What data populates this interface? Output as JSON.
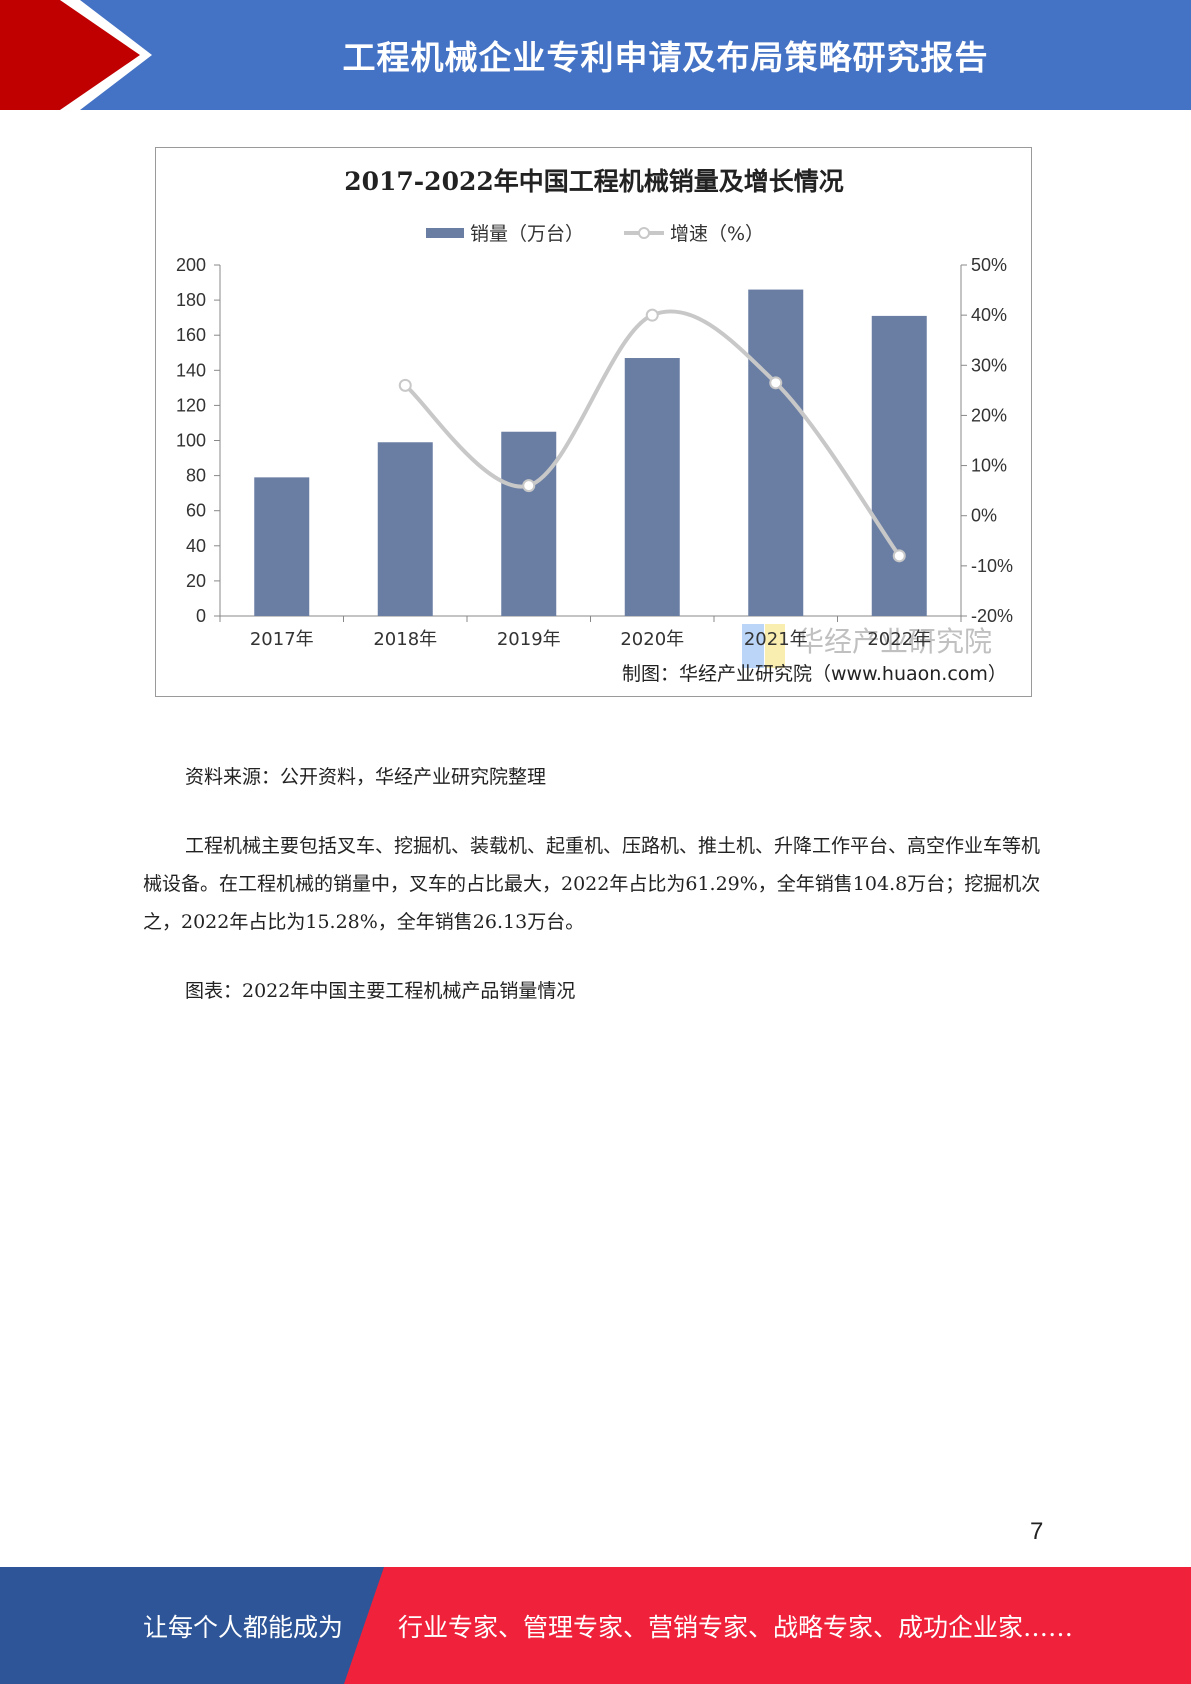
{
  "header": {
    "title": "工程机械企业专利申请及布局策略研究报告",
    "colors": {
      "banner": "#4472c4",
      "chevron": "#c00000"
    }
  },
  "chart_data": {
    "type": "bar",
    "title": "2017-2022年中国工程机械销量及增长情况",
    "categories": [
      "2017年",
      "2018年",
      "2019年",
      "2020年",
      "2021年",
      "2022年"
    ],
    "series": [
      {
        "name": "销量（万台）",
        "kind": "bar",
        "axis": "left",
        "color": "#6a7ea3",
        "values": [
          79,
          99,
          105,
          147,
          186,
          171
        ]
      },
      {
        "name": "增速（%）",
        "kind": "line",
        "axis": "right",
        "color": "#c8c8c8",
        "values": [
          null,
          26,
          6,
          40,
          26.5,
          -8
        ]
      }
    ],
    "y_left": {
      "min": 0,
      "max": 200,
      "ticks": [
        "0",
        "20",
        "40",
        "60",
        "80",
        "100",
        "120",
        "140",
        "160",
        "180",
        "200"
      ]
    },
    "y_right": {
      "min": -20,
      "max": 50,
      "ticks": [
        "-20%",
        "-10%",
        "0%",
        "10%",
        "20%",
        "30%",
        "40%",
        "50%"
      ]
    },
    "legend_position": "top-center",
    "watermark": "华经产业研究院",
    "credit": "制图：华经产业研究院（www.huaon.com）"
  },
  "text": {
    "source": "资料来源：公开资料，华经产业研究院整理",
    "paragraph": "工程机械主要包括叉车、挖掘机、装载机、起重机、压路机、推土机、升降工作平台、高空作业车等机械设备。在工程机械的销量中，叉车的占比最大，2022年占比为61.29%，全年销售104.8万台；挖掘机次之，2022年占比为15.28%，全年销售26.13万台。",
    "figure_caption": "图表：2022年中国主要工程机械产品销量情况"
  },
  "page_number": "7",
  "footer": {
    "left_text": "让每个人都能成为",
    "right_text": "行业专家、管理专家、营销专家、战略专家、成功企业家……",
    "colors": {
      "left": "#2e5597",
      "right": "#f0213a"
    }
  }
}
